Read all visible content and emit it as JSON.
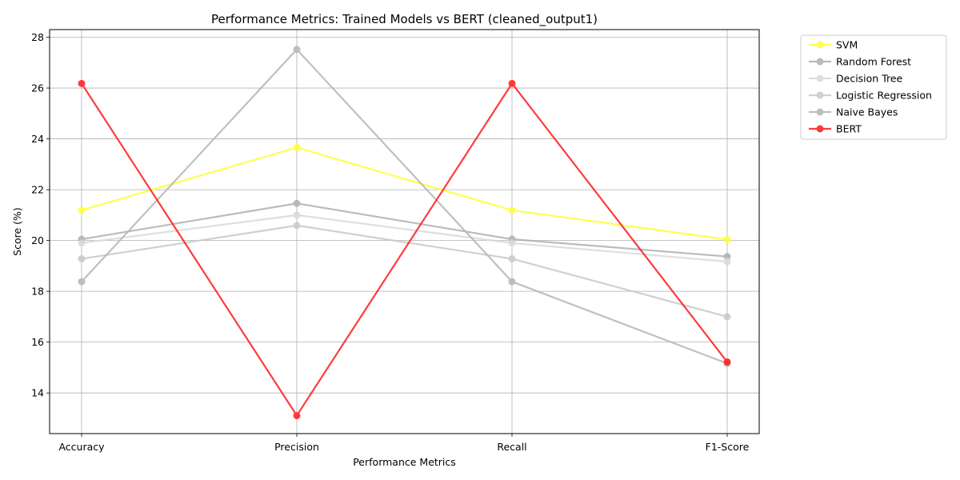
{
  "chart_data": {
    "type": "line",
    "title": "Performance Metrics: Trained Models vs BERT (cleaned_output1)",
    "xlabel": "Performance Metrics",
    "ylabel": "Score (%)",
    "categories": [
      "Accuracy",
      "Precision",
      "Recall",
      "F1-Score"
    ],
    "ylim": [
      12.4,
      28.3
    ],
    "yticks": [
      14,
      16,
      18,
      20,
      22,
      24,
      26,
      28
    ],
    "grid": true,
    "legend_position": "outside-top-right",
    "series": [
      {
        "name": "SVM",
        "color": "#ffff33",
        "values": [
          21.19,
          23.66,
          21.19,
          20.04
        ]
      },
      {
        "name": "Random Forest",
        "color": "#b0b0b0",
        "values": [
          20.05,
          21.46,
          20.05,
          19.37
        ]
      },
      {
        "name": "Decision Tree",
        "color": "#d9d9d9",
        "values": [
          19.9,
          21.0,
          19.9,
          19.17
        ]
      },
      {
        "name": "Logistic Regression",
        "color": "#c8c8c8",
        "values": [
          19.28,
          20.59,
          19.28,
          17.0
        ]
      },
      {
        "name": "Naive Bayes",
        "color": "#b5b5b5",
        "values": [
          18.38,
          27.52,
          18.38,
          15.16
        ]
      },
      {
        "name": "BERT",
        "color": "#ff1a1a",
        "values": [
          26.18,
          13.11,
          26.18,
          15.22
        ]
      }
    ]
  }
}
